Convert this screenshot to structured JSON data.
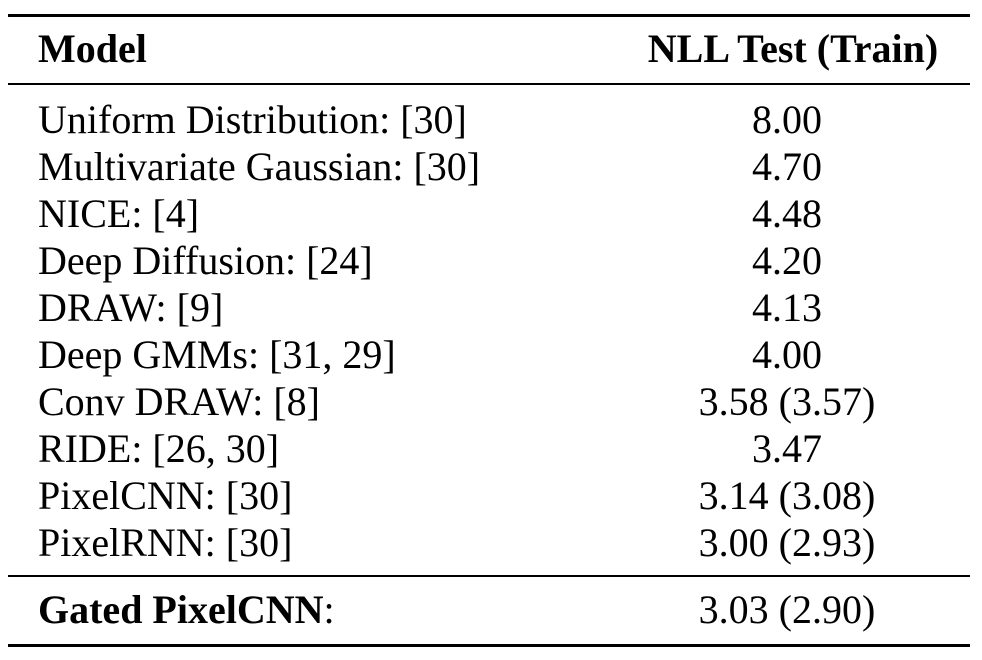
{
  "table": {
    "headers": {
      "model": "Model",
      "nll": "NLL Test (Train)"
    },
    "rows": [
      {
        "model": "Uniform Distribution: [30]",
        "nll": "8.00"
      },
      {
        "model": "Multivariate Gaussian: [30]",
        "nll": "4.70"
      },
      {
        "model": "NICE: [4]",
        "nll": "4.48"
      },
      {
        "model": "Deep Diffusion: [24]",
        "nll": "4.20"
      },
      {
        "model": "DRAW: [9]",
        "nll": "4.13"
      },
      {
        "model": "Deep GMMs: [31, 29]",
        "nll": "4.00"
      },
      {
        "model": "Conv DRAW: [8]",
        "nll": "3.58 (3.57)"
      },
      {
        "model": "RIDE: [26, 30]",
        "nll": "3.47"
      },
      {
        "model": "PixelCNN: [30]",
        "nll": "3.14 (3.08)"
      },
      {
        "model": "PixelRNN: [30]",
        "nll": "3.00 (2.93)"
      }
    ],
    "final_row": {
      "model_bold": "Gated PixelCNN",
      "model_suffix": ":",
      "nll": "3.03 (2.90)"
    }
  }
}
